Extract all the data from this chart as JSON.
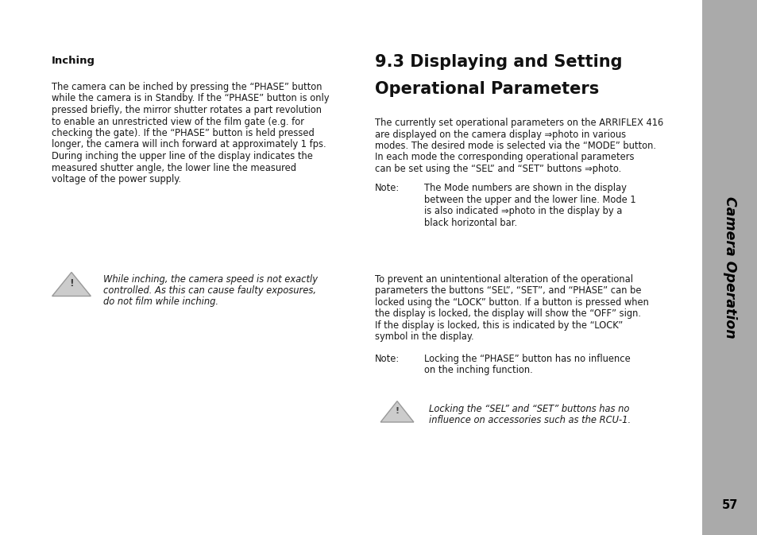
{
  "bg_color": "#ffffff",
  "sidebar_color": "#aaaaaa",
  "page_number": "57",
  "sidebar_title": "Camera Operation",
  "left_heading": "Inching",
  "left_body1": "The camera can be inched by pressing the “PHASE” button",
  "left_body2": "while the camera is in Standby. If the “PHASE” button is only",
  "left_body3": "pressed briefly, the mirror shutter rotates a part revolution",
  "left_body4": "to enable an unrestricted view of the film gate (e.g. for",
  "left_body5": "checking the gate). If the “PHASE” button is held pressed",
  "left_body6": "longer, the camera will inch forward at approximately 1 fps.",
  "left_body7": "During inching the upper line of the display indicates the",
  "left_body8": "measured shutter angle, the lower line the measured",
  "left_body9": "voltage of the power supply.",
  "left_warning_line1": "While inching, the camera speed is not exactly",
  "left_warning_line2": "controlled. As this can cause faulty exposures,",
  "left_warning_line3": "do not film while inching.",
  "right_heading1": "9.3 Displaying and Setting",
  "right_heading2": "Operational Parameters",
  "right_body1_line1": "The currently set operational parameters on the ARRIFLEX 416",
  "right_body1_line2": "are displayed on the camera display ⇒photo in various",
  "right_body1_line3": "modes. The desired mode is selected via the “MODE” button.",
  "right_body1_line4": "In each mode the corresponding operational parameters",
  "right_body1_line5": "can be set using the “SEL” and “SET” buttons ⇒photo.",
  "right_note1_label": "Note:",
  "right_note1_line1": "The Mode numbers are shown in the display",
  "right_note1_line2": "between the upper and the lower line. Mode 1",
  "right_note1_line3": "is also indicated ⇒photo in the display by a",
  "right_note1_line4": "black horizontal bar.",
  "right_body2_line1": "To prevent an unintentional alteration of the operational",
  "right_body2_line2": "parameters the buttons “SEL”, “SET”, and “PHASE” can be",
  "right_body2_line3": "locked using the “LOCK” button. If a button is pressed when",
  "right_body2_line4": "the display is locked, the display will show the “OFF” sign.",
  "right_body2_line5": "If the display is locked, this is indicated by the “LOCK”",
  "right_body2_line6": "symbol in the display.",
  "right_note2_label": "Note:",
  "right_note2_line1": "Locking the “PHASE” button has no influence",
  "right_note2_line2": "on the inching function.",
  "right_warning_line1": "Locking the “SEL” and “SET” buttons has no",
  "right_warning_line2": "influence on accessories such as the RCU-1.",
  "text_color": "#1a1a1a",
  "heading_color": "#111111",
  "note_label_color": "#1a1a1a"
}
